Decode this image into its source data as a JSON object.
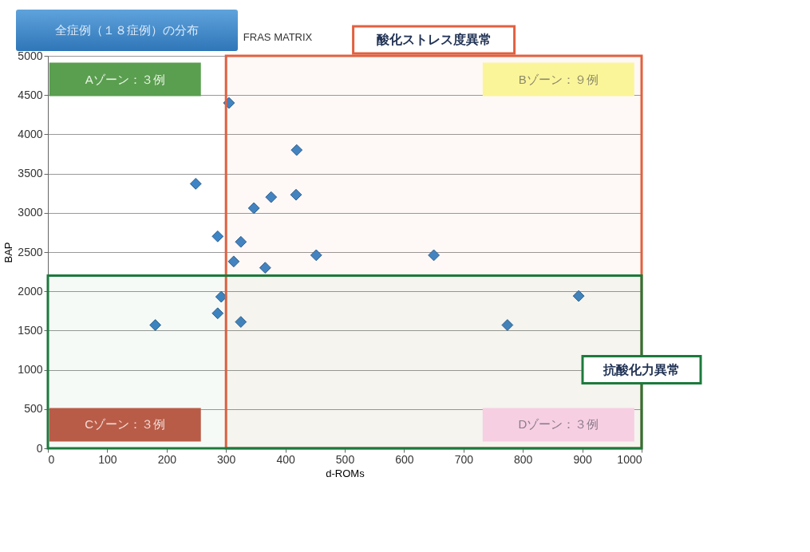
{
  "chart_data": {
    "type": "scatter",
    "title": "全症例（１８症例）の分布",
    "subtitle": "FRAS MATRIX",
    "xlabel": "d-ROMs",
    "ylabel": "BAP",
    "x": [
      305,
      419,
      249,
      418,
      376,
      347,
      286,
      325,
      313,
      452,
      366,
      650,
      292,
      286,
      181,
      325,
      774,
      894
    ],
    "series": [
      {
        "color": "#3d85c6",
        "values": [
          4400,
          3800,
          3370,
          3230,
          3200,
          3060,
          2700,
          2630,
          2380,
          2460,
          2300,
          2460,
          1930,
          1720,
          1570,
          1610,
          1570,
          1940
        ]
      }
    ],
    "xlim": [
      0,
      1000
    ],
    "xticks": [
      0,
      100,
      200,
      300,
      400,
      500,
      600,
      700,
      800,
      900,
      {
        "value": 1000,
        "label": "1000"
      }
    ],
    "ylim": [
      0,
      5000
    ],
    "yticks": [
      0,
      500,
      1000,
      1500,
      2000,
      2500,
      3000,
      3500,
      4000,
      4500,
      5000
    ],
    "grid": "y",
    "marker": "diamond",
    "bands": [
      {
        "axis": "x",
        "from": 300,
        "to": 1000,
        "label": "酸化ストレス度異常",
        "color": "#e2603f"
      },
      {
        "axis": "y",
        "from": 0,
        "to": 2200,
        "label": "抗酸化力異常",
        "color": "#1c7a3c"
      }
    ],
    "annotations": [
      "Aゾーン：３例",
      "Bゾーン：９例",
      "Cゾーン：３例",
      "Dゾーン：３例"
    ]
  }
}
